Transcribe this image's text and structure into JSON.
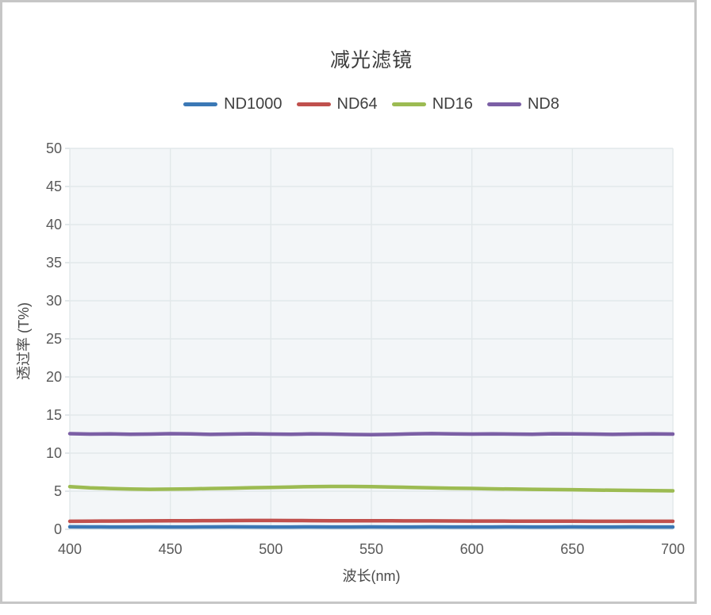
{
  "frame": {
    "border_color": "#c6c6c6"
  },
  "chart_data": {
    "type": "line",
    "title": "减光滤镜",
    "xlabel": "波长(nm)",
    "ylabel": "透过率 (T%)",
    "xlim": [
      400,
      700
    ],
    "ylim": [
      0,
      50
    ],
    "xticks": [
      400,
      450,
      500,
      550,
      600,
      650,
      700
    ],
    "yticks": [
      0,
      5,
      10,
      15,
      20,
      25,
      30,
      35,
      40,
      45,
      50
    ],
    "grid": true,
    "legend_position": "top",
    "plot_bg": "#f3f6f8",
    "grid_color": "#e2e8ea",
    "tick_color": "#d5dde0",
    "text_color": "#595959",
    "x": [
      400,
      410,
      420,
      430,
      440,
      450,
      460,
      470,
      480,
      490,
      500,
      510,
      520,
      530,
      540,
      550,
      560,
      570,
      580,
      590,
      600,
      610,
      620,
      630,
      640,
      650,
      660,
      670,
      680,
      690,
      700
    ],
    "series": [
      {
        "name": "ND1000",
        "color": "#3b78b5",
        "values": [
          0.32,
          0.31,
          0.3,
          0.3,
          0.31,
          0.3,
          0.3,
          0.31,
          0.32,
          0.31,
          0.3,
          0.3,
          0.31,
          0.3,
          0.3,
          0.31,
          0.3,
          0.3,
          0.31,
          0.3,
          0.3,
          0.3,
          0.31,
          0.3,
          0.3,
          0.31,
          0.3,
          0.3,
          0.31,
          0.3,
          0.3
        ]
      },
      {
        "name": "ND64",
        "color": "#c0504d",
        "values": [
          1.05,
          1.07,
          1.08,
          1.09,
          1.1,
          1.11,
          1.12,
          1.14,
          1.15,
          1.16,
          1.16,
          1.15,
          1.14,
          1.13,
          1.13,
          1.12,
          1.11,
          1.1,
          1.1,
          1.09,
          1.08,
          1.08,
          1.07,
          1.07,
          1.06,
          1.06,
          1.05,
          1.05,
          1.05,
          1.05,
          1.05
        ]
      },
      {
        "name": "ND16",
        "color": "#9cbb52",
        "values": [
          5.6,
          5.45,
          5.35,
          5.28,
          5.25,
          5.27,
          5.3,
          5.35,
          5.4,
          5.46,
          5.5,
          5.55,
          5.6,
          5.62,
          5.62,
          5.6,
          5.55,
          5.5,
          5.45,
          5.4,
          5.36,
          5.31,
          5.28,
          5.25,
          5.22,
          5.2,
          5.16,
          5.13,
          5.1,
          5.07,
          5.05
        ]
      },
      {
        "name": "ND8",
        "color": "#7b5fa5",
        "values": [
          12.55,
          12.5,
          12.52,
          12.48,
          12.5,
          12.55,
          12.52,
          12.46,
          12.5,
          12.54,
          12.5,
          12.47,
          12.52,
          12.5,
          12.45,
          12.42,
          12.46,
          12.52,
          12.56,
          12.52,
          12.5,
          12.53,
          12.5,
          12.47,
          12.54,
          12.52,
          12.5,
          12.46,
          12.5,
          12.53,
          12.5
        ]
      }
    ]
  }
}
